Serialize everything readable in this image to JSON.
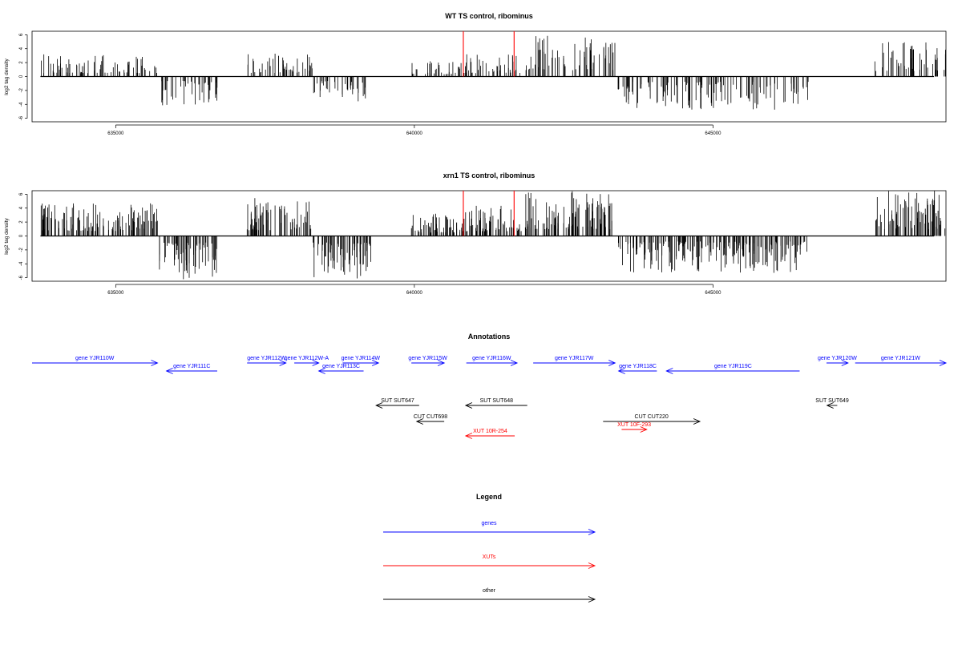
{
  "colors": {
    "genes": "#0000ff",
    "xuts": "#ff0000",
    "other": "#000000",
    "bars": "#000000",
    "markers": "#ff0000",
    "axis": "#000000"
  },
  "chart_data": [
    {
      "type": "bar",
      "title": "WT TS control, ribominus",
      "ylabel": "log2 tag density",
      "xlim": [
        633600,
        648900
      ],
      "ylim": [
        -6.5,
        6.5
      ],
      "x_ticks": [
        635000,
        640000,
        645000
      ],
      "y_ticks": [
        -6,
        -4,
        -2,
        0,
        2,
        4,
        6
      ],
      "marker_positions": [
        640820,
        641670
      ],
      "regions": [
        {
          "start": 633740,
          "end": 635700,
          "strand": "+",
          "max": 3.2
        },
        {
          "start": 635730,
          "end": 636700,
          "strand": "-",
          "max": -4.2
        },
        {
          "start": 637200,
          "end": 638300,
          "strand": "+",
          "max": 3.5
        },
        {
          "start": 638300,
          "end": 639200,
          "strand": "-",
          "max": -3.6
        },
        {
          "start": 639950,
          "end": 640700,
          "strand": "+",
          "max": 2.2
        },
        {
          "start": 640700,
          "end": 641800,
          "strand": "+",
          "max": 3.2
        },
        {
          "start": 641850,
          "end": 643400,
          "strand": "+",
          "max": 6.0
        },
        {
          "start": 643400,
          "end": 646600,
          "strand": "-",
          "max": -5.0
        },
        {
          "start": 647700,
          "end": 648900,
          "strand": "+",
          "max": 5.3
        }
      ]
    },
    {
      "type": "bar",
      "title": "xrn1 TS control, ribominus",
      "ylabel": "log2 tag density",
      "xlim": [
        633600,
        648900
      ],
      "ylim": [
        -6.5,
        6.5
      ],
      "x_ticks": [
        635000,
        640000,
        645000
      ],
      "y_ticks": [
        -6,
        -4,
        -2,
        0,
        2,
        4,
        6
      ],
      "marker_positions": [
        640820,
        641670
      ],
      "regions": [
        {
          "start": 633740,
          "end": 635700,
          "strand": "+",
          "max": 4.8
        },
        {
          "start": 635730,
          "end": 636700,
          "strand": "-",
          "max": -6.3
        },
        {
          "start": 637200,
          "end": 638300,
          "strand": "+",
          "max": 5.5
        },
        {
          "start": 638300,
          "end": 639300,
          "strand": "-",
          "max": -6.3
        },
        {
          "start": 639950,
          "end": 640800,
          "strand": "+",
          "max": 3.2
        },
        {
          "start": 640800,
          "end": 641800,
          "strand": "+",
          "max": 4.5
        },
        {
          "start": 641850,
          "end": 643400,
          "strand": "+",
          "max": 6.5
        },
        {
          "start": 643400,
          "end": 646600,
          "strand": "-",
          "max": -5.3
        },
        {
          "start": 647700,
          "end": 648900,
          "strand": "+",
          "max": 6.5
        }
      ]
    }
  ],
  "annotations": {
    "title": "Annotations",
    "features": [
      {
        "label": "gene YJR110W",
        "type": "gene",
        "strand": "+",
        "start": 633600,
        "end": 635700
      },
      {
        "label": "gene YJR111C",
        "type": "gene",
        "strand": "-",
        "start": 635850,
        "end": 636700
      },
      {
        "label": "gene YJR112W",
        "type": "gene",
        "strand": "+",
        "start": 637200,
        "end": 637850
      },
      {
        "label": "gene YJR112W-A",
        "type": "gene",
        "strand": "+",
        "start": 637990,
        "end": 638400
      },
      {
        "label": "gene YJR113C",
        "type": "gene",
        "strand": "-",
        "start": 638400,
        "end": 639150
      },
      {
        "label": "gene YJR114W",
        "type": "gene",
        "strand": "+",
        "start": 638800,
        "end": 639400
      },
      {
        "label": "gene YJR115W",
        "type": "gene",
        "strand": "+",
        "start": 639950,
        "end": 640500
      },
      {
        "label": "gene YJR116W",
        "type": "gene",
        "strand": "+",
        "start": 640870,
        "end": 641720
      },
      {
        "label": "gene YJR117W",
        "type": "gene",
        "strand": "+",
        "start": 641990,
        "end": 643360
      },
      {
        "label": "gene YJR118C",
        "type": "gene",
        "strand": "-",
        "start": 643420,
        "end": 644060
      },
      {
        "label": "gene YJR119C",
        "type": "gene",
        "strand": "-",
        "start": 644220,
        "end": 646450
      },
      {
        "label": "gene YJR120W",
        "type": "gene",
        "strand": "+",
        "start": 646900,
        "end": 647260
      },
      {
        "label": "gene YJR121W",
        "type": "gene",
        "strand": "+",
        "start": 647380,
        "end": 648900
      },
      {
        "label": "SUT SUT647",
        "type": "other",
        "strand": "-",
        "start": 639360,
        "end": 640080
      },
      {
        "label": "SUT SUT648",
        "type": "other",
        "strand": "-",
        "start": 640860,
        "end": 641890
      },
      {
        "label": "SUT SUT649",
        "type": "other",
        "strand": "-",
        "start": 646910,
        "end": 647080
      },
      {
        "label": "CUT CUT698",
        "type": "other",
        "strand": "-",
        "start": 640040,
        "end": 640500
      },
      {
        "label": "CUT CUT220",
        "type": "other",
        "strand": "+",
        "start": 643160,
        "end": 644780
      },
      {
        "label": "XUT 10F-293",
        "type": "xut",
        "strand": "+",
        "start": 643470,
        "end": 643890
      },
      {
        "label": "XUT 10R-254",
        "type": "xut",
        "strand": "-",
        "start": 640860,
        "end": 641680
      }
    ]
  },
  "legend": {
    "title": "Legend",
    "items": [
      {
        "label": "genes",
        "type": "gene"
      },
      {
        "label": "XUTs",
        "type": "xut"
      },
      {
        "label": "other",
        "type": "other"
      }
    ]
  }
}
